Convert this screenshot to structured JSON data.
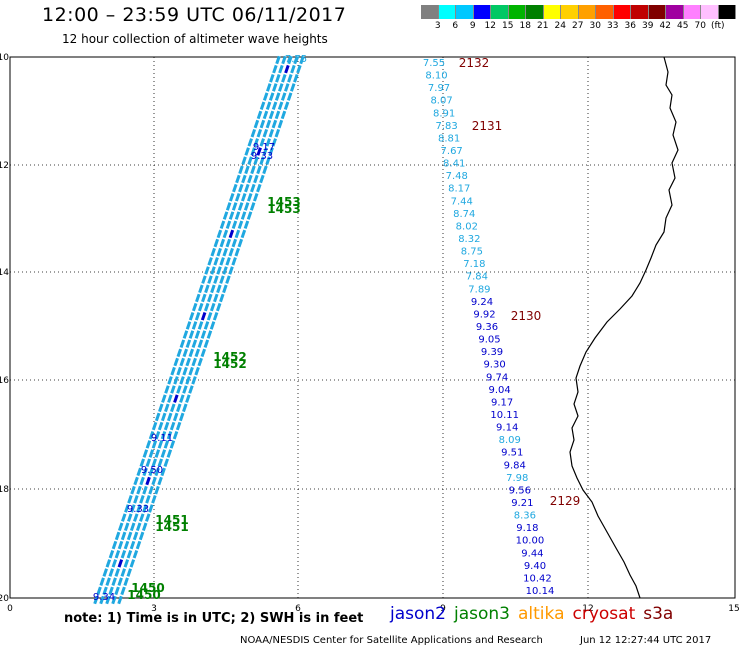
{
  "header": {
    "title": "12:00 – 23:59 UTC 06/11/2017",
    "subtitle": "12 hour collection of altimeter wave heights"
  },
  "colorbar": {
    "colors": [
      "#808080",
      "#00ffff",
      "#00c8ff",
      "#0000ff",
      "#00c864",
      "#00b400",
      "#008000",
      "#ffff00",
      "#ffd000",
      "#ffa000",
      "#ff6000",
      "#ff0000",
      "#c00000",
      "#800000",
      "#a000a0",
      "#ff80ff",
      "#ffc0ff",
      "#000000"
    ],
    "labels": [
      "3",
      "6",
      "9",
      "12",
      "15",
      "18",
      "21",
      "24",
      "27",
      "30",
      "33",
      "36",
      "39",
      "42",
      "45",
      "70",
      "(ft)"
    ]
  },
  "axes": {
    "x_ticks": [
      "0",
      "3",
      "6",
      "9",
      "12",
      "15"
    ],
    "y_ticks": [
      "-10",
      "-12",
      "-14",
      "-16",
      "-18",
      "-20"
    ]
  },
  "map_colors": {
    "jason2": "#0000cc",
    "jason3": "#008000",
    "cryosat": "#800000",
    "light": "#20a8e0",
    "coast": "#000000"
  },
  "swh_track_east": [
    {
      "v": "7.55",
      "c": "light"
    },
    {
      "v": "8.10",
      "c": "light"
    },
    {
      "v": "7.97",
      "c": "light"
    },
    {
      "v": "8.07",
      "c": "light"
    },
    {
      "v": "8.91",
      "c": "light"
    },
    {
      "v": "7.83",
      "c": "light"
    },
    {
      "v": "8.81",
      "c": "light"
    },
    {
      "v": "7.67",
      "c": "light"
    },
    {
      "v": "8.41",
      "c": "light"
    },
    {
      "v": "7.48",
      "c": "light"
    },
    {
      "v": "8.17",
      "c": "light"
    },
    {
      "v": "7.44",
      "c": "light"
    },
    {
      "v": "8.74",
      "c": "light"
    },
    {
      "v": "8.02",
      "c": "light"
    },
    {
      "v": "8.32",
      "c": "light"
    },
    {
      "v": "8.75",
      "c": "light"
    },
    {
      "v": "7.18",
      "c": "light"
    },
    {
      "v": "7.84",
      "c": "light"
    },
    {
      "v": "7.89",
      "c": "light"
    },
    {
      "v": "9.24",
      "c": "jason2"
    },
    {
      "v": "9.92",
      "c": "jason2"
    },
    {
      "v": "9.36",
      "c": "jason2"
    },
    {
      "v": "9.05",
      "c": "jason2"
    },
    {
      "v": "9.39",
      "c": "jason2"
    },
    {
      "v": "9.30",
      "c": "jason2"
    },
    {
      "v": "9.74",
      "c": "jason2"
    },
    {
      "v": "9.04",
      "c": "jason2"
    },
    {
      "v": "9.17",
      "c": "jason2"
    },
    {
      "v": "10.11",
      "c": "jason2"
    },
    {
      "v": "9.14",
      "c": "jason2"
    },
    {
      "v": "8.09",
      "c": "light"
    },
    {
      "v": "9.51",
      "c": "jason2"
    },
    {
      "v": "9.84",
      "c": "jason2"
    },
    {
      "v": "7.98",
      "c": "light"
    },
    {
      "v": "9.56",
      "c": "jason2"
    },
    {
      "v": "9.21",
      "c": "jason2"
    },
    {
      "v": "8.36",
      "c": "light"
    },
    {
      "v": "9.18",
      "c": "jason2"
    },
    {
      "v": "10.00",
      "c": "jason2"
    },
    {
      "v": "9.44",
      "c": "jason2"
    },
    {
      "v": "9.40",
      "c": "jason2"
    },
    {
      "v": "10.42",
      "c": "jason2"
    },
    {
      "v": "10.14",
      "c": "jason2"
    }
  ],
  "swh_track_west_labels": [
    {
      "v": "7.75",
      "c": "light"
    },
    {
      "v": "9.17",
      "c": "jason2"
    },
    {
      "v": "9.33",
      "c": "jason2"
    },
    {
      "v": "9.11",
      "c": "jason2"
    },
    {
      "v": "9.50",
      "c": "jason2"
    },
    {
      "v": "9.33",
      "c": "jason2"
    },
    {
      "v": "9.34",
      "c": "jason2"
    }
  ],
  "time_labels": [
    {
      "t": "2132",
      "c": "cryosat"
    },
    {
      "t": "2131",
      "c": "cryosat"
    },
    {
      "t": "2130",
      "c": "cryosat"
    },
    {
      "t": "2129",
      "c": "cryosat"
    },
    {
      "t": "1453",
      "c": "jason3"
    },
    {
      "t": "1452",
      "c": "jason3"
    },
    {
      "t": "1451",
      "c": "jason3"
    },
    {
      "t": "1450",
      "c": "jason3"
    }
  ],
  "footer": {
    "note": "note: 1) Time is in UTC; 2) SWH is in feet",
    "satellites": [
      {
        "name": "jason2",
        "color": "#0000cc"
      },
      {
        "name": "jason3",
        "color": "#008000"
      },
      {
        "name": "altika",
        "color": "#ff9900"
      },
      {
        "name": "cryosat",
        "color": "#cc0000"
      },
      {
        "name": "s3a",
        "color": "#800000"
      }
    ],
    "credit": "NOAA/NESDIS Center for Satellite Applications and Research",
    "timestamp": "Jun 12 12:27:44 UTC 2017"
  }
}
